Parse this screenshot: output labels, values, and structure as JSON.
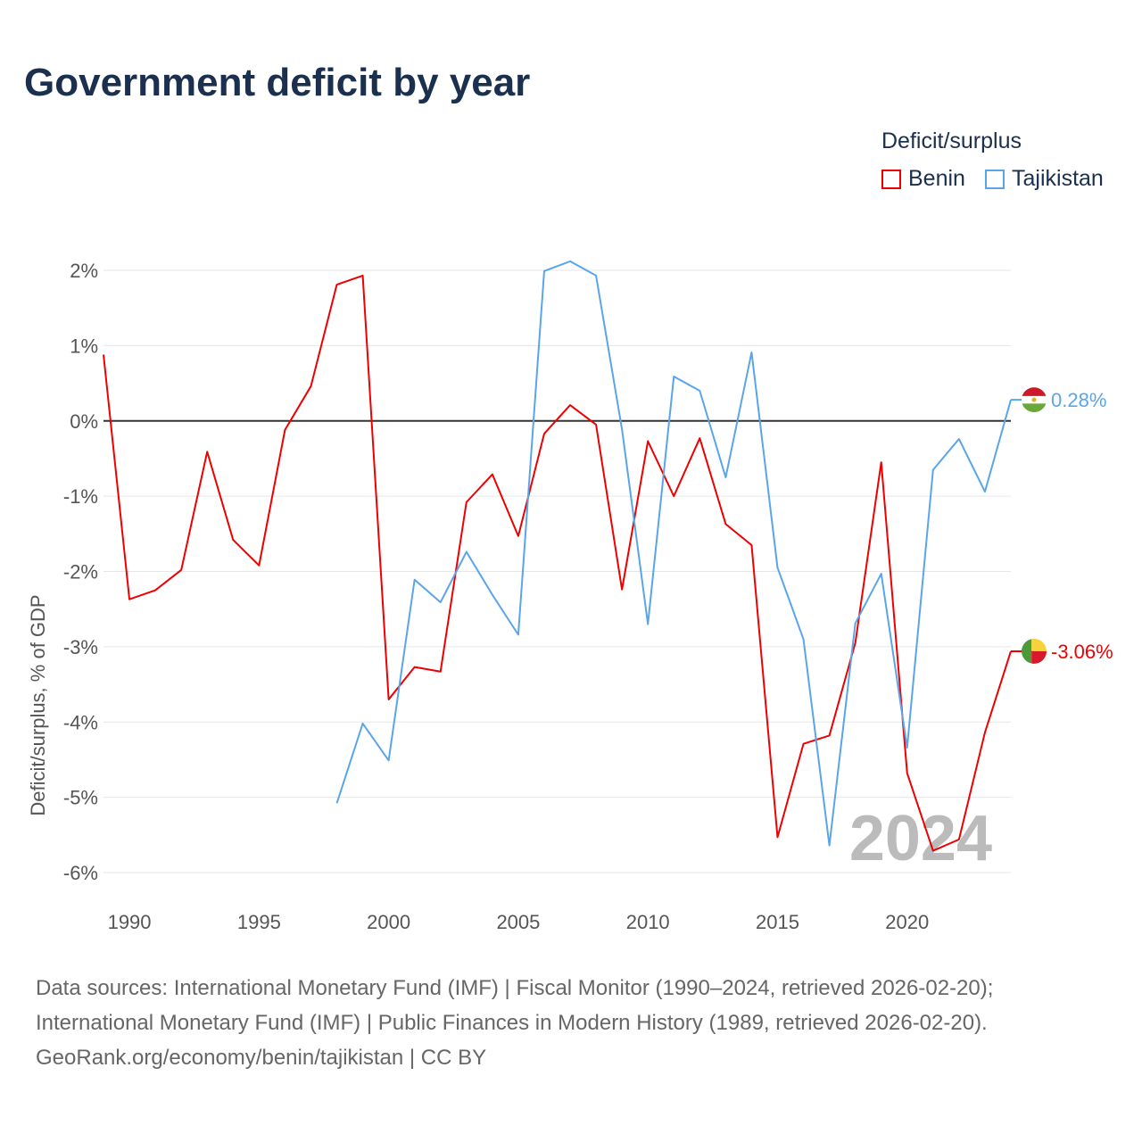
{
  "chart_data": {
    "type": "line",
    "title": "Government deficit by year",
    "ylabel": "Deficit/surplus, % of GDP",
    "xlabel": "",
    "xlim": [
      1989,
      2024
    ],
    "ylim": [
      -6,
      2
    ],
    "x_ticks": [
      1990,
      1995,
      2000,
      2005,
      2010,
      2015,
      2020
    ],
    "x_tick_labels": [
      "1990",
      "1995",
      "2000",
      "2005",
      "2010",
      "2015",
      "2020"
    ],
    "y_ticks": [
      2,
      1,
      0,
      -1,
      -2,
      -3,
      -4,
      -5,
      -6
    ],
    "y_tick_labels": [
      "2%",
      "1%",
      "0%",
      "-1%",
      "-2%",
      "-3%",
      "-4%",
      "-5%",
      "-6%"
    ],
    "grid": true,
    "legend": {
      "title": "Deficit/surplus",
      "placement": "top-right"
    },
    "year_watermark": "2024",
    "series": [
      {
        "name": "Benin",
        "color": "#ee0000",
        "end_label": "-3.06%",
        "x": [
          1989,
          1990,
          1991,
          1992,
          1993,
          1994,
          1995,
          1996,
          1997,
          1998,
          1999,
          2000,
          2001,
          2002,
          2003,
          2004,
          2005,
          2006,
          2007,
          2008,
          2009,
          2010,
          2011,
          2012,
          2013,
          2014,
          2015,
          2016,
          2017,
          2018,
          2019,
          2020,
          2021,
          2022,
          2023,
          2024
        ],
        "values": [
          0.88,
          -2.37,
          -2.25,
          -1.98,
          -0.41,
          -1.58,
          -1.92,
          -0.12,
          0.46,
          1.81,
          1.93,
          -3.7,
          -3.27,
          -3.33,
          -1.08,
          -0.71,
          -1.53,
          -0.17,
          0.21,
          -0.05,
          -2.24,
          -0.27,
          -1.0,
          -0.23,
          -1.37,
          -1.65,
          -5.53,
          -4.29,
          -4.18,
          -2.95,
          -0.55,
          -4.68,
          -5.71,
          -5.56,
          -4.14,
          -3.06
        ]
      },
      {
        "name": "Tajikistan",
        "color": "#5aa5ea",
        "end_label": "0.28%",
        "x": [
          1998,
          1999,
          2000,
          2001,
          2002,
          2003,
          2004,
          2005,
          2006,
          2007,
          2008,
          2009,
          2010,
          2011,
          2012,
          2013,
          2014,
          2015,
          2016,
          2017,
          2018,
          2019,
          2020,
          2021,
          2022,
          2023,
          2024
        ],
        "values": [
          -5.08,
          -4.02,
          -4.51,
          -2.11,
          -2.41,
          -1.74,
          -2.31,
          -2.84,
          1.99,
          2.12,
          1.93,
          -0.11,
          -2.7,
          0.59,
          0.4,
          -0.75,
          0.91,
          -1.95,
          -2.9,
          -5.64,
          -2.69,
          -2.03,
          -4.34,
          -0.65,
          -0.24,
          -0.94,
          0.28
        ]
      }
    ]
  },
  "footer": {
    "line1": "Data sources: International Monetary Fund (IMF) | Fiscal Monitor (1990–2024, retrieved 2026-02-20);",
    "line2": "International Monetary Fund (IMF) | Public Finances in Modern History (1989, retrieved 2026-02-20).",
    "line3": "GeoRank.org/economy/benin/tajikistan | CC BY"
  }
}
